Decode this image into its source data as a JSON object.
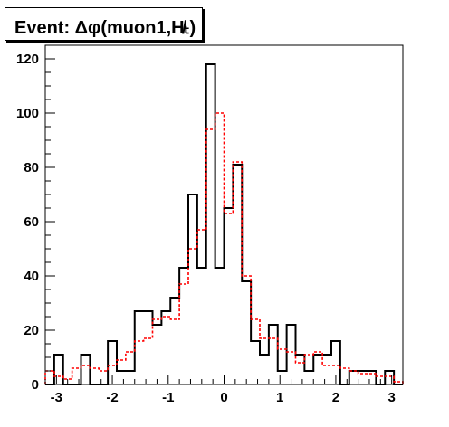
{
  "title": "Event: Δφ(muon1,H̸ₜ)",
  "chart_data": {
    "type": "histogram",
    "xlim": [
      -3.2,
      3.2
    ],
    "ylim": [
      0,
      125
    ],
    "x_ticks": [
      -3,
      -2,
      -1,
      0,
      1,
      2,
      3
    ],
    "y_ticks": [
      0,
      20,
      40,
      60,
      80,
      100,
      120
    ],
    "bin_edges": [
      -3.2,
      -3.04,
      -2.88,
      -2.72,
      -2.56,
      -2.4,
      -2.24,
      -2.08,
      -1.92,
      -1.76,
      -1.6,
      -1.44,
      -1.28,
      -1.12,
      -0.96,
      -0.8,
      -0.64,
      -0.48,
      -0.32,
      -0.16,
      0.0,
      0.16,
      0.32,
      0.48,
      0.64,
      0.8,
      0.96,
      1.12,
      1.28,
      1.44,
      1.6,
      1.76,
      1.92,
      2.08,
      2.24,
      2.4,
      2.56,
      2.72,
      2.88,
      3.04,
      3.2
    ],
    "series": [
      {
        "style": "solid",
        "color": "#000000",
        "values": [
          0,
          11,
          0,
          0,
          11,
          0,
          0,
          16,
          5,
          5,
          27,
          27,
          22,
          27,
          32,
          43,
          70,
          43,
          118,
          43,
          65,
          81,
          38,
          16,
          11,
          22,
          5,
          22,
          11,
          5,
          11,
          11,
          16,
          0,
          5,
          5,
          5,
          0,
          5,
          0
        ]
      },
      {
        "style": "dashed",
        "color": "#ff0000",
        "values": [
          5,
          3,
          2,
          6,
          7,
          6,
          5,
          7,
          9,
          12,
          16,
          17,
          24,
          25,
          24,
          37,
          50,
          57,
          94,
          100,
          63,
          82,
          40,
          24,
          17,
          17,
          13,
          12,
          8,
          11,
          12,
          7,
          7,
          6,
          5,
          4,
          4,
          3,
          3,
          1
        ]
      }
    ]
  }
}
